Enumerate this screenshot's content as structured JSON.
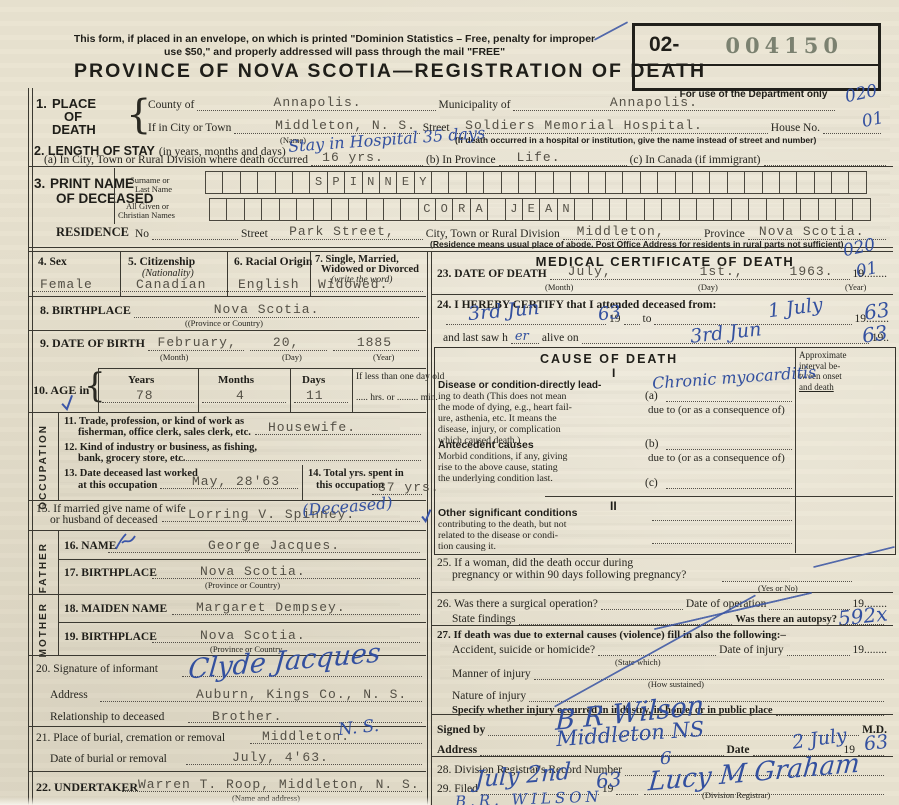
{
  "header": {
    "notice1": "This form, if placed in an envelope, on which is printed \"Dominion Statistics – Free, penalty for improper",
    "notice2": "use $50,\" and properly addressed will pass through the mail \"FREE\"",
    "title": "PROVINCE OF NOVA SCOTIA—REGISTRATION OF DEATH"
  },
  "stamp": {
    "prefix": "02-",
    "number": "004150",
    "caption": "For use of the Department only"
  },
  "p1": {
    "num": "1.",
    "l1": "PLACE",
    "l2": "OF",
    "l3": "DEATH",
    "county_label": "County of",
    "county": "Annapolis.",
    "mun_label": "Municipality of",
    "mun": "Annapolis.",
    "city_label": "If in City or Town",
    "city": "Middleton, N. S.",
    "name_sub": "(Name)",
    "street_label": "Street",
    "street": "Soldiers Memorial Hospital.",
    "house_label": "House No.",
    "note": "(If death occurred in a hospital or institution, give the name instead of street and number)"
  },
  "p2": {
    "title": "2. LENGTH OF STAY",
    "title_rest": "(in years, months and days)",
    "hw": "Stay in Hospital 35 days",
    "a_label": "(a) In City, Town or Rural Division where death occurred",
    "a": "16 yrs.",
    "b_label": "(b) In Province",
    "b": "Life.",
    "c_label": "(c) In Canada (if immigrant)"
  },
  "p3": {
    "num": "3.",
    "l1": "PRINT NAME",
    "l2": "OF DECEASED",
    "surname_l1": "Surname or",
    "surname_l2": "Last Name",
    "given_l1": "All Given or",
    "given_l2": "Christian Names",
    "surname_boxes": "      SPINNEY                         ",
    "given_boxes": "            CORA JEAN                 "
  },
  "res": {
    "label": "RESIDENCE",
    "no_label": "No",
    "street_label": "Street",
    "street": "Park Street,",
    "city_label": "City, Town or Rural Division",
    "city": "Middleton,",
    "prov_label": "Province",
    "prov": "Nova Scotia.",
    "note": "(Residence means usual place of abode. Post Office Address for residents in rural parts not sufficient)"
  },
  "p4": {
    "label": "4. Sex",
    "v": "Female"
  },
  "p5": {
    "label": "5. Citizenship",
    "sub": "(Nationality)",
    "v": "Canadian"
  },
  "p6": {
    "label": "6. Racial Origin",
    "v": "English"
  },
  "p7": {
    "l1": "7. Single, Married,",
    "l2": "Widowed or Divorced",
    "sub": "(write the word)",
    "v": "Widowed."
  },
  "p8": {
    "label": "8. BIRTHPLACE",
    "v": "Nova Scotia.",
    "sub": "((Province or Country)"
  },
  "p9": {
    "label": "9. DATE OF BIRTH",
    "month": "February,",
    "month_sub": "(Month)",
    "day": "20,",
    "day_sub": "(Day)",
    "year": "1885",
    "year_sub": "(Year)"
  },
  "p10": {
    "label": "10. AGE in",
    "years_h": "Years",
    "years": "78",
    "months_h": "Months",
    "months": "4",
    "days_h": "Days",
    "days": "11",
    "less_l1": "If less than one day old",
    "less_l2": "..... hrs. or ......... min."
  },
  "occ": {
    "side": "OCCUPATION",
    "i11_l1": "11. Trade, profession, or kind of work as",
    "i11_l2": "fisherman, office clerk, sales clerk, etc.",
    "i11": "Housewife.",
    "i12_l1": "12. Kind of industry or business, as fishing,",
    "i12_l2": "bank, grocery store, etc.",
    "i13_l1": "13. Date deceased last worked",
    "i13_l2": "at this occupation",
    "i13": "May, 28'63",
    "i14_l1": "14. Total yrs. spent in",
    "i14_l2": "this occupation",
    "i14": "37 yrs."
  },
  "p15": {
    "l1": "15. If married give name of wife",
    "l2": "or husband of deceased",
    "v": "Lorring V. Spinney.",
    "hw": "(Deceased)"
  },
  "fa": {
    "side": "FATHER",
    "name_label": "16. NAME",
    "name": "George Jacques.",
    "bp_label": "17. BIRTHPLACE",
    "bp": "Nova Scotia.",
    "bp_sub": "(Province or Country)"
  },
  "mo": {
    "side": "MOTHER",
    "maiden_label": "18. MAIDEN NAME",
    "maiden": "Margaret Dempsey.",
    "bp_label": "19. BIRTHPLACE",
    "bp": "Nova Scotia.",
    "bp_sub": "(Province or Country"
  },
  "p20": {
    "label": "20. Signature of informant",
    "sig": "Clyde Jacques",
    "addr_label": "Address",
    "addr": "Auburn, Kings Co., N. S.",
    "rel_label": "Relationship to deceased",
    "rel": "Brother."
  },
  "p21": {
    "label": "21. Place of burial, cremation or removal",
    "v": "Middleton.",
    "hw": "N. S.",
    "date_label": "Date of burial or removal",
    "date": "July, 4'63."
  },
  "p22": {
    "label": "22. UNDERTAKER",
    "v": "Warren T. Roop, Middleton, N. S.",
    "sub": "(Name and address)"
  },
  "med": {
    "title": "MEDICAL CERTIFICATE OF DEATH"
  },
  "p23": {
    "label": "23. DATE OF DEATH",
    "month": "July,",
    "month_sub": "(Month)",
    "day": "1st.,",
    "day_sub": "(Day)",
    "year": "1963.",
    "year_pre": "19........",
    "year_sub": "(Year)"
  },
  "p24": {
    "label": "24. I HEREBY CERTIFY that I attended deceased from:",
    "from_hw": "3rd Jun",
    "y1_pre": "19",
    "y1_hw": "63",
    "to": "to",
    "to_hw": "1 July",
    "y2_pre": "19........",
    "y2_hw": "63",
    "saw_pre": "and last saw h",
    "saw_fill": "er",
    "saw_post": "alive on",
    "saw_hw": "3rd Jun",
    "y3_pre": "19..",
    "y3_hw": "63"
  },
  "cause": {
    "title": "CAUSE OF DEATH",
    "part1": "I",
    "interval": [
      "Approximate",
      "interval be-",
      "tween onset",
      "and death"
    ],
    "disease": [
      "Disease or condition-directly lead-",
      "ing to death (This does not mean",
      "the mode of dying, e.g., heart fail-",
      "ure, asthenia, etc. It means the",
      "disease, injury, or complication",
      "which caused death.)"
    ],
    "a_label": "(a)",
    "a_hw": "Chronic myocarditis",
    "due1": "due to (or as a consequence of)",
    "ant_bold": "Antecedent causes",
    "ant": [
      "Morbid conditions, if any, giving",
      "rise to the above cause, stating",
      "the underlying condition last."
    ],
    "b_label": "(b)",
    "due2": "due to (or as a consequence of)",
    "c_label": "(c)",
    "part2": "II",
    "other_bold": "Other significant conditions",
    "other": [
      "contributing to the death, but not",
      "related to the disease or condi-",
      "tion causing it."
    ]
  },
  "p25": {
    "l1": "25. If a woman, did the death occur during",
    "l2": "pregnancy or within 90 days following pregnancy?",
    "sub": "(Yes or No)"
  },
  "p26": {
    "q": "26. Was there a surgical operation?",
    "date_label": "Date of operation",
    "year": "19........",
    "findings": "State findings",
    "autopsy": "Was there an autopsy?"
  },
  "p27": {
    "label": "27. If death was due to external causes (violence) fill in also the following:–",
    "acc": "Accident, suicide or homicide?",
    "which": "(State which)",
    "inj_date": "Date of injury",
    "year": "19........",
    "manner": "Manner of injury",
    "how": "(How sustained)",
    "nature": "Nature of injury",
    "specify": "Specify whether injury occurred in industry, in home, or in public place"
  },
  "signed": {
    "label": "Signed by",
    "sig": "B R Wilson",
    "md": "M.D.",
    "addr_label": "Address",
    "addr_hw": "Middleton NS",
    "date_label": "Date",
    "date_hw": "2 July",
    "y_pre": "19",
    "y_hw": "63"
  },
  "p28": {
    "label": "28. Division Registrar's Record Number",
    "hw": "6"
  },
  "p29": {
    "label": "29. Filed",
    "date_hw": "July 2nd",
    "y_pre": "19",
    "y_hw": "63",
    "sig": "Lucy M Graham",
    "sub": "(Division Registrar)",
    "bottom": "B.R. WILSON"
  },
  "margins": {
    "c020a": "020",
    "c01a": "01",
    "c020b": "020",
    "c01b": "01",
    "ref": "592x"
  }
}
